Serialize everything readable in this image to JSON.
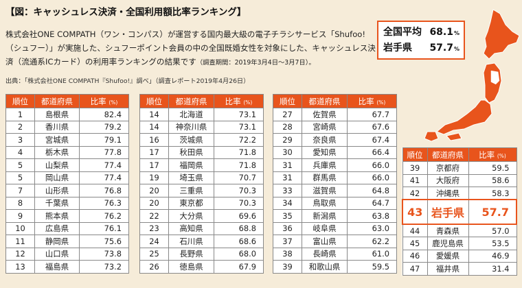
{
  "title": "【図：キャッシュレス決済・全国利用額比率ランキング】",
  "intro": {
    "text": "株式会社ONE COMPATH（ワン・コンパス）が運営する国内最大級の電子チラシサービス「Shufoo!（シュフー）」が実施した、シュフーポイント会員の中の全国既婚女性を対象にした、キャッシュレス決済（流通系ICカード）の利用率ランキングの結果です",
    "note": "（調査期間：2019年3月4日～3月7日）。"
  },
  "source": "出典：「株式会社ONE COMPATH『Shufoo!』調べ」（調査レポート2019年4月26日）",
  "summary": {
    "national_label": "全国平均",
    "national_value": "68.1",
    "iwate_label": "岩手県",
    "iwate_value": "57.7",
    "pct": "%"
  },
  "headers": {
    "rank": "順位",
    "pref": "都道府県",
    "rate": "比率",
    "pct": "(%)"
  },
  "colors": {
    "accent": "#e8541c",
    "background": "#f6ecd9"
  },
  "tables": [
    [
      [
        "1",
        "島根県",
        "82.4"
      ],
      [
        "2",
        "香川県",
        "79.2"
      ],
      [
        "3",
        "宮城県",
        "79.1"
      ],
      [
        "4",
        "栃木県",
        "77.8"
      ],
      [
        "5",
        "山梨県",
        "77.4"
      ],
      [
        "5",
        "岡山県",
        "77.4"
      ],
      [
        "7",
        "山形県",
        "76.8"
      ],
      [
        "8",
        "千葉県",
        "76.3"
      ],
      [
        "9",
        "熊本県",
        "76.2"
      ],
      [
        "10",
        "広島県",
        "76.1"
      ],
      [
        "11",
        "静岡県",
        "75.6"
      ],
      [
        "12",
        "山口県",
        "73.8"
      ],
      [
        "13",
        "福島県",
        "73.2"
      ]
    ],
    [
      [
        "14",
        "北海道",
        "73.1"
      ],
      [
        "14",
        "神奈川県",
        "73.1"
      ],
      [
        "16",
        "茨城県",
        "72.2"
      ],
      [
        "17",
        "秋田県",
        "71.8"
      ],
      [
        "17",
        "福岡県",
        "71.8"
      ],
      [
        "19",
        "埼玉県",
        "70.7"
      ],
      [
        "20",
        "三重県",
        "70.3"
      ],
      [
        "20",
        "東京都",
        "70.3"
      ],
      [
        "22",
        "大分県",
        "69.6"
      ],
      [
        "23",
        "高知県",
        "68.8"
      ],
      [
        "24",
        "石川県",
        "68.6"
      ],
      [
        "25",
        "長野県",
        "68.0"
      ],
      [
        "26",
        "徳島県",
        "67.9"
      ]
    ],
    [
      [
        "27",
        "佐賀県",
        "67.7"
      ],
      [
        "28",
        "宮崎県",
        "67.6"
      ],
      [
        "29",
        "奈良県",
        "67.4"
      ],
      [
        "30",
        "愛知県",
        "66.4"
      ],
      [
        "31",
        "兵庫県",
        "66.0"
      ],
      [
        "31",
        "群馬県",
        "66.0"
      ],
      [
        "33",
        "滋賀県",
        "64.8"
      ],
      [
        "34",
        "鳥取県",
        "64.7"
      ],
      [
        "35",
        "新潟県",
        "63.8"
      ],
      [
        "36",
        "岐阜県",
        "63.0"
      ],
      [
        "37",
        "富山県",
        "62.2"
      ],
      [
        "38",
        "長崎県",
        "61.0"
      ],
      [
        "39",
        "和歌山県",
        "59.5"
      ]
    ],
    [
      [
        "39",
        "京都府",
        "59.5"
      ],
      [
        "41",
        "大阪府",
        "58.6"
      ],
      [
        "42",
        "沖縄県",
        "58.3"
      ],
      [
        "43",
        "岩手県",
        "57.7"
      ],
      [
        "44",
        "青森県",
        "57.0"
      ],
      [
        "45",
        "鹿児島県",
        "53.5"
      ],
      [
        "46",
        "愛媛県",
        "46.9"
      ],
      [
        "47",
        "福井県",
        "31.4"
      ]
    ]
  ]
}
